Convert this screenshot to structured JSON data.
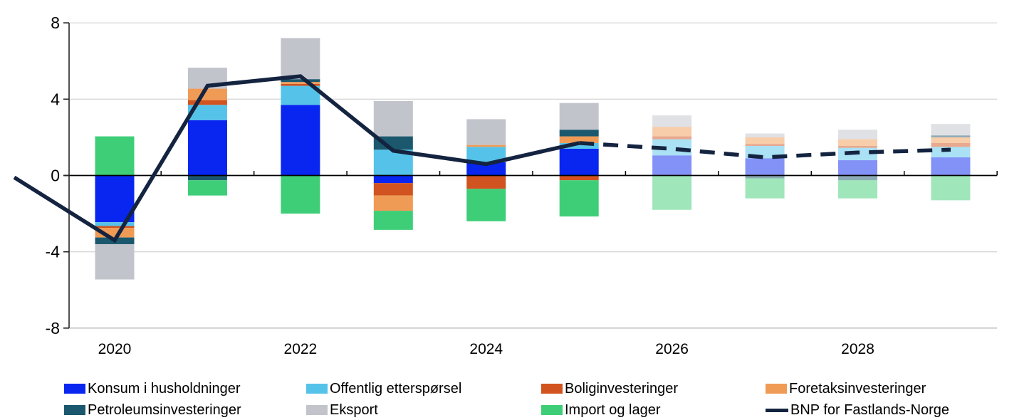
{
  "chart_data": {
    "type": "bar",
    "subtype": "stacked-bar-with-line-overlay",
    "title": "",
    "xlabel": "",
    "ylabel": "",
    "ylim": [
      -8,
      8
    ],
    "y_ticks": [
      8,
      4,
      0,
      -4,
      -8
    ],
    "y_tick_labels": [
      "8",
      "4",
      "0",
      "-4",
      "-8"
    ],
    "years": [
      2020,
      2021,
      2022,
      2023,
      2024,
      2025,
      2026,
      2027,
      2028,
      2029
    ],
    "x_tick_labels": [
      "2020",
      "2022",
      "2024",
      "2026",
      "2028"
    ],
    "x_tick_year_indices": [
      0,
      2,
      4,
      6,
      8
    ],
    "grid": "horizontal",
    "legend_position": "bottom",
    "forecast_from_year": 2026,
    "forecast_bar_opacity": 0.5,
    "series": [
      {
        "name": "Konsum i husholdninger",
        "color": "#0826f0",
        "values": [
          -2.45,
          2.9,
          3.7,
          -0.4,
          0.7,
          1.4,
          1.05,
          0.9,
          0.8,
          0.95
        ]
      },
      {
        "name": "Offentlig etterspørsel",
        "color": "#55c3e9",
        "values": [
          -0.2,
          0.8,
          1.0,
          1.35,
          0.8,
          0.3,
          0.85,
          0.65,
          0.65,
          0.55
        ]
      },
      {
        "name": "Boliginvesteringer",
        "color": "#d1531f",
        "values": [
          -0.1,
          0.25,
          0.1,
          -0.65,
          -0.7,
          -0.25,
          0.15,
          0.1,
          0.1,
          0.2
        ]
      },
      {
        "name": "Foretaksinvesteringer",
        "color": "#f09b55",
        "values": [
          -0.5,
          0.6,
          0.1,
          -0.8,
          0.1,
          0.35,
          0.5,
          0.35,
          0.35,
          0.3
        ]
      },
      {
        "name": "Petroleumsinvesteringer",
        "color": "#1b586e",
        "values": [
          -0.35,
          -0.25,
          0.15,
          0.7,
          0.0,
          0.35,
          0.0,
          -0.15,
          -0.25,
          0.1
        ]
      },
      {
        "name": "Eksport",
        "color": "#c2c4cc",
        "values": [
          -1.85,
          1.1,
          2.15,
          1.85,
          1.35,
          1.4,
          0.6,
          0.2,
          0.5,
          0.6
        ]
      },
      {
        "name": "Import og lager",
        "color": "#3fce78",
        "values": [
          2.05,
          -0.8,
          -2.0,
          -1.0,
          -1.7,
          -1.9,
          -1.8,
          -1.05,
          -0.95,
          -1.3
        ]
      }
    ],
    "line_series": {
      "name": "BNP for Fastlands-Norge",
      "color": "#142440",
      "values": [
        -3.4,
        4.7,
        5.2,
        1.3,
        0.6,
        1.7,
        1.4,
        0.95,
        1.2,
        1.35
      ],
      "pre_point_value": -0.1,
      "dashed_from_year": 2025
    }
  },
  "legend": {
    "items": [
      {
        "label": "Konsum i husholdninger",
        "color": "#0826f0",
        "swatch": "box",
        "row": 0,
        "col": 0
      },
      {
        "label": "Offentlig etterspørsel",
        "color": "#55c3e9",
        "swatch": "box",
        "row": 0,
        "col": 1
      },
      {
        "label": "Boliginvesteringer",
        "color": "#d1531f",
        "swatch": "box",
        "row": 0,
        "col": 2
      },
      {
        "label": "Foretaksinvesteringer",
        "color": "#f09b55",
        "swatch": "box",
        "row": 0,
        "col": 3
      },
      {
        "label": "Petroleumsinvesteringer",
        "color": "#1b586e",
        "swatch": "box",
        "row": 1,
        "col": 0
      },
      {
        "label": "Eksport",
        "color": "#c2c4cc",
        "swatch": "box",
        "row": 1,
        "col": 1
      },
      {
        "label": "Import og lager",
        "color": "#3fce78",
        "swatch": "box",
        "row": 1,
        "col": 2
      },
      {
        "label": "BNP for Fastlands-Norge",
        "color": "#142440",
        "swatch": "line",
        "row": 1,
        "col": 3
      }
    ]
  },
  "colors": {
    "grid_line": "#d8d8d8",
    "zero_line": "#000000",
    "axis_line": "#262626",
    "bottom_line": "#b5b5b5",
    "background": "#ffffff"
  }
}
